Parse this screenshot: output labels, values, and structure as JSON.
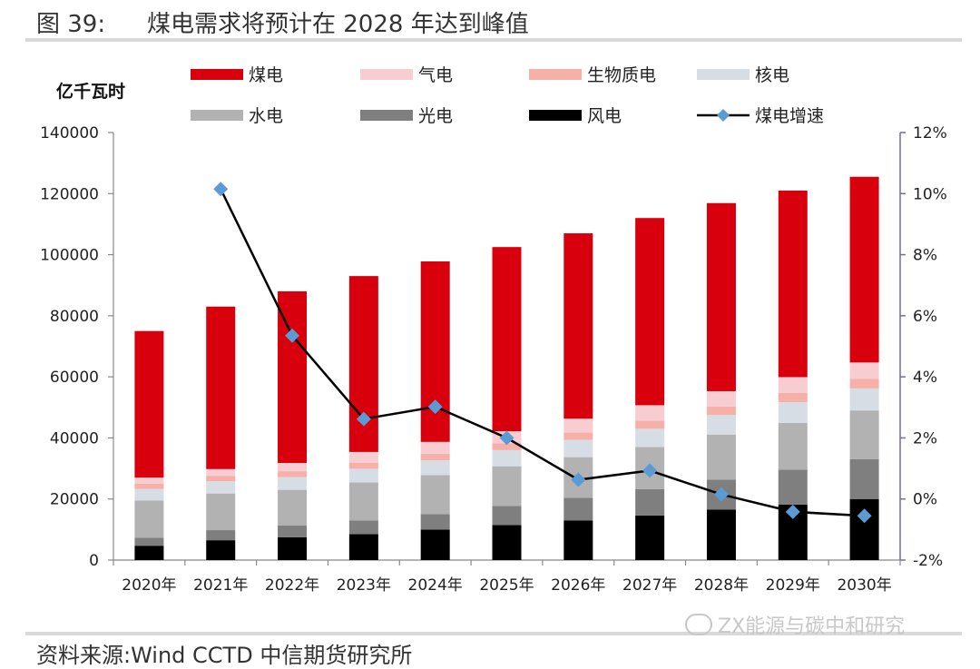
{
  "figure": {
    "number": "图 39:",
    "title": "煤电需求将预计在 2028 年达到峰值",
    "source": "资料来源:Wind CCTD 中信期货研究所",
    "watermark": "ZX能源与碳中和研究"
  },
  "chart_data": {
    "type": "bar",
    "stacked": true,
    "ylabel": "亿千瓦时",
    "categories": [
      "2020年",
      "2021年",
      "2022年",
      "2023年",
      "2024年",
      "2025年",
      "2026年",
      "2027年",
      "2028年",
      "2029年",
      "2030年"
    ],
    "ylim": [
      0,
      140000
    ],
    "y_ticks": [
      "0",
      "20000",
      "40000",
      "60000",
      "80000",
      "100000",
      "120000",
      "140000"
    ],
    "y2lim": [
      -0.02,
      0.12
    ],
    "y2_ticks": [
      "-2%",
      "0%",
      "2%",
      "4%",
      "6%",
      "8%",
      "10%",
      "12%"
    ],
    "legend_position": "top",
    "series": [
      {
        "name": "风电",
        "color": "#000000",
        "values": [
          4700,
          6500,
          7500,
          8500,
          10000,
          11500,
          13000,
          14600,
          16500,
          18200,
          20000
        ]
      },
      {
        "name": "光电",
        "color": "#7f7f7f",
        "values": [
          2600,
          3300,
          3800,
          4500,
          5000,
          6200,
          7400,
          8600,
          9800,
          11400,
          13000
        ]
      },
      {
        "name": "水电",
        "color": "#b2b2b2",
        "values": [
          12200,
          12000,
          11700,
          12400,
          12800,
          13000,
          13300,
          13800,
          14800,
          15300,
          16000
        ]
      },
      {
        "name": "核电",
        "color": "#d7dde5",
        "values": [
          3800,
          4000,
          4200,
          4500,
          4900,
          5300,
          5700,
          6000,
          6400,
          6800,
          7200
        ]
      },
      {
        "name": "生物质电",
        "color": "#f6b0a8",
        "values": [
          1700,
          1800,
          1900,
          2000,
          2100,
          2200,
          2400,
          2600,
          2800,
          3000,
          3200
        ]
      },
      {
        "name": "气电",
        "color": "#f8cdd1",
        "values": [
          2000,
          2200,
          2700,
          3500,
          3900,
          4000,
          4500,
          5100,
          5000,
          5200,
          5300
        ]
      },
      {
        "name": "煤电",
        "color": "#d9000d",
        "values": [
          48000,
          53200,
          56200,
          57600,
          59100,
          60300,
          60700,
          61300,
          61600,
          61100,
          60800
        ]
      }
    ],
    "line": {
      "name": "煤电增速",
      "color": "#000000",
      "marker_color": "#5b9bd5",
      "axis": "right",
      "values": [
        null,
        0.1015,
        0.0535,
        0.0262,
        0.0302,
        0.02,
        0.0063,
        0.0093,
        0.0015,
        -0.0042,
        -0.0055
      ]
    },
    "legend": [
      "煤电",
      "气电",
      "生物质电",
      "核电",
      "水电",
      "光电",
      "风电",
      "煤电增速"
    ]
  }
}
